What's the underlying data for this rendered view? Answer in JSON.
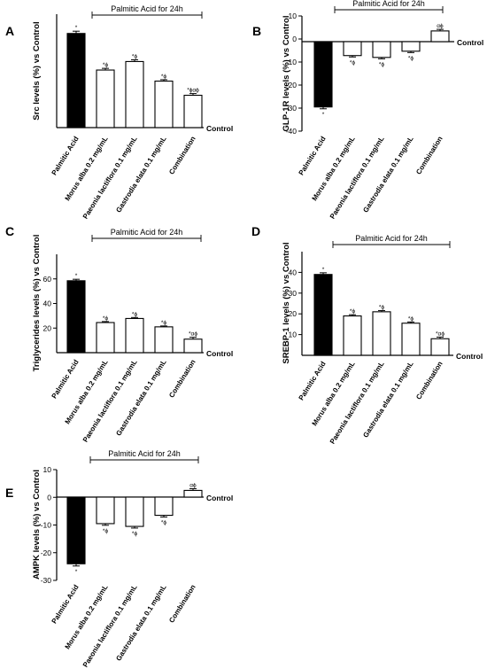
{
  "figure": {
    "treatment_label": "Palmitic Acid for 24h",
    "baseline_label": "Control"
  },
  "colors": {
    "palmitic_bar": "#000000",
    "treatment_bar": "#ffffff",
    "stroke": "#000000"
  },
  "chart_data": [
    {
      "panel": "A",
      "type": "bar",
      "ylabel": "Src levels (%) vs Control",
      "categories": [
        "Palmitic Acid",
        "Morus alba 0.2 mg/mL",
        "Paeonia lactiflora 0.1 mg/mL",
        "Gastrodia elata 0.1 mg/mL",
        "Combination"
      ],
      "values": [
        33.2,
        20.3,
        23.3,
        16.4,
        11.4
      ],
      "errors": [
        0.8,
        0.6,
        0.6,
        0.5,
        0.6
      ],
      "annotations": [
        "*",
        "*ϕ",
        "*ϕ",
        "*ϕ",
        "*ϕαϕ"
      ],
      "ylim": [
        0,
        40
      ],
      "yticks": [],
      "grid": false
    },
    {
      "panel": "B",
      "type": "bar",
      "ylabel": "GLP-1R levels (%) vs Control",
      "categories": [
        "Palmitic Acid",
        "Morus alba 0.2 mg/mL",
        "Paeonia lactiflora 0.1 mg/mL",
        "Gastrodia elata 0.1 mg/mL",
        "Combination"
      ],
      "values": [
        -29.5,
        -7.2,
        -8.0,
        -5.3,
        3.5
      ],
      "errors": [
        0.8,
        0.6,
        0.6,
        0.6,
        0.7
      ],
      "annotations": [
        "*",
        "*ϕ",
        "*ϕ",
        "*ϕ",
        "αϕ"
      ],
      "ylim": [
        -40,
        10
      ],
      "yticks": [
        10,
        0,
        -10,
        -20,
        -30,
        -40
      ],
      "grid": false
    },
    {
      "panel": "C",
      "type": "bar",
      "ylabel": "Triglycerides levels (%) vs Control",
      "categories": [
        "Palmitic Acid",
        "Morus alba 0.2 mg/mL",
        "Paeonia lactiflora 0.1 mg/mL",
        "Gastrodia elata 0.1 mg/mL",
        "Combination"
      ],
      "values": [
        58.5,
        24.5,
        27.8,
        21.0,
        11.0
      ],
      "errors": [
        1.2,
        0.8,
        0.8,
        0.7,
        1.5
      ],
      "annotations": [
        "*",
        "*ϕ",
        "*ϕ",
        "*ϕ",
        "*αϕ"
      ],
      "ylim": [
        0,
        80
      ],
      "yticks": [
        60,
        40,
        20
      ],
      "grid": false
    },
    {
      "panel": "D",
      "type": "bar",
      "ylabel": "SREBP-1 levels (%) vs Control",
      "categories": [
        "Palmitic Acid",
        "Morus alba 0.2 mg/mL",
        "Paeonia lactiflora 0.1 mg/mL",
        "Gastrodia elata 0.1 mg/mL",
        "Combination"
      ],
      "values": [
        39.0,
        19.0,
        21.0,
        15.5,
        8.0
      ],
      "errors": [
        0.8,
        0.6,
        0.6,
        0.6,
        0.8
      ],
      "annotations": [
        "*",
        "*ϕ",
        "*ϕ",
        "*ϕ",
        "*αϕ"
      ],
      "ylim": [
        0,
        50
      ],
      "yticks": [
        40,
        30,
        20,
        10
      ],
      "grid": false
    },
    {
      "panel": "E",
      "type": "bar",
      "ylabel": "AMPK levels (%) vs Control",
      "categories": [
        "Palmitic Acid",
        "Morus alba 0.2 mg/mL",
        "Paeonia lactiflora 0.1 mg/mL",
        "Gastrodia elata 0.1 mg/mL",
        "Combination"
      ],
      "values": [
        -24.0,
        -9.5,
        -10.5,
        -6.5,
        2.5
      ],
      "errors": [
        0.8,
        0.6,
        0.6,
        0.6,
        0.6
      ],
      "annotations": [
        "*",
        "*ϕ",
        "*ϕ",
        "*ϕ",
        "αϕ"
      ],
      "ylim": [
        -30,
        10
      ],
      "yticks": [
        10,
        0,
        -10,
        -20,
        -30
      ],
      "grid": false
    }
  ]
}
